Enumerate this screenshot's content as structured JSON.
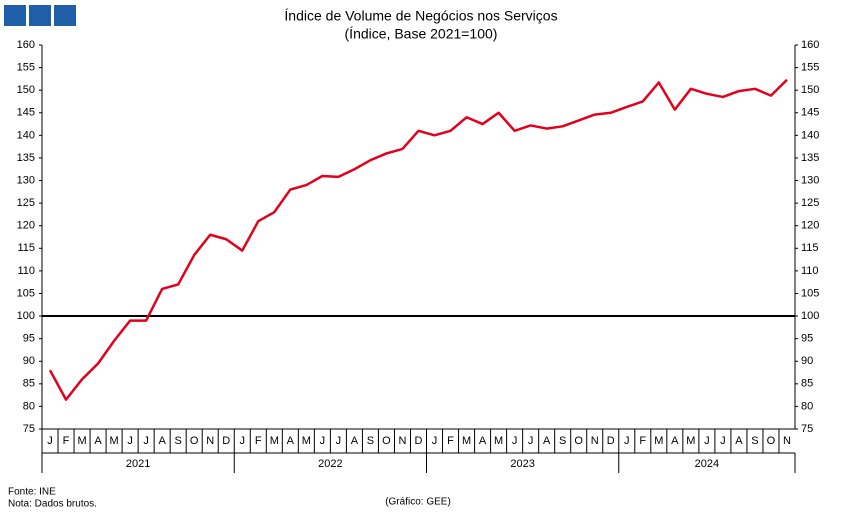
{
  "chart_data": {
    "type": "line",
    "title": "Índice de Volume de Negócios nos Serviços",
    "subtitle": "(Índice, Base 2021=100)",
    "groups": [
      {
        "name": "2021",
        "categories": [
          "J",
          "F",
          "M",
          "A",
          "M",
          "J",
          "J",
          "A",
          "S",
          "O",
          "N",
          "D"
        ]
      },
      {
        "name": "2022",
        "categories": [
          "J",
          "F",
          "M",
          "A",
          "M",
          "J",
          "J",
          "A",
          "S",
          "O",
          "N",
          "D"
        ]
      },
      {
        "name": "2023",
        "categories": [
          "J",
          "F",
          "M",
          "A",
          "M",
          "J",
          "J",
          "A",
          "S",
          "O",
          "N",
          "D"
        ]
      },
      {
        "name": "2024",
        "categories": [
          "J",
          "F",
          "M",
          "A",
          "M",
          "J",
          "J",
          "A",
          "S",
          "O",
          "N"
        ]
      }
    ],
    "series": [
      {
        "name": "Índice",
        "color": "#e3001b",
        "values": [
          88,
          81.5,
          86,
          89.5,
          94.5,
          99,
          99,
          106,
          107,
          113.5,
          118,
          117,
          114.5,
          121,
          123,
          128,
          129,
          131,
          130.8,
          132.5,
          134.5,
          136,
          137,
          141,
          140,
          141,
          144,
          142.5,
          145,
          141,
          142.2,
          141.5,
          142,
          143.3,
          144.6,
          145,
          146.3,
          147.5,
          151.7,
          145.7,
          150.3,
          149.2,
          148.5,
          149.8,
          150.3,
          148.8,
          152.3
        ]
      }
    ],
    "reference_line": {
      "value": 100,
      "color": "#000000"
    },
    "ylim": [
      75,
      160
    ],
    "yticks": [
      75,
      80,
      85,
      90,
      95,
      100,
      105,
      110,
      115,
      120,
      125,
      130,
      135,
      140,
      145,
      150,
      155,
      160
    ],
    "source": "Fonte: INE",
    "note": "Nota: Dados brutos.",
    "credit": "(Gráfico: GEE)"
  }
}
